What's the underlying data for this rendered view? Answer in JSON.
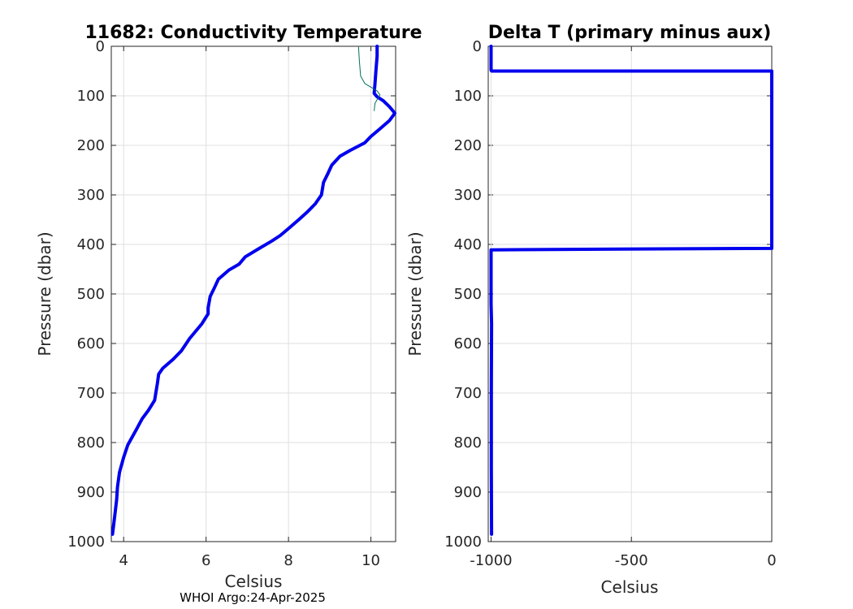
{
  "credit": "WHOI Argo:24-Apr-2025",
  "chart_data": [
    {
      "type": "line",
      "title": "11682: Conductivity Temperature",
      "xlabel": "Celsius",
      "ylabel": "Pressure (dbar)",
      "xlim": [
        3.7,
        10.6
      ],
      "ylim": [
        0,
        1000
      ],
      "y_reversed": true,
      "xticks": [
        4,
        6,
        8,
        10
      ],
      "yticks": [
        0,
        100,
        200,
        300,
        400,
        500,
        600,
        700,
        800,
        900,
        1000
      ],
      "grid": true,
      "series": [
        {
          "color": "#0000ee",
          "points": [
            [
              10.15,
              0
            ],
            [
              10.15,
              20
            ],
            [
              10.12,
              50
            ],
            [
              10.1,
              75
            ],
            [
              10.08,
              95
            ],
            [
              10.15,
              102
            ],
            [
              10.3,
              110
            ],
            [
              10.45,
              122
            ],
            [
              10.58,
              135
            ],
            [
              10.45,
              150
            ],
            [
              10.2,
              168
            ],
            [
              10.0,
              182
            ],
            [
              9.85,
              195
            ],
            [
              9.5,
              210
            ],
            [
              9.25,
              222
            ],
            [
              9.05,
              240
            ],
            [
              8.95,
              258
            ],
            [
              8.85,
              275
            ],
            [
              8.8,
              300
            ],
            [
              8.65,
              318
            ],
            [
              8.45,
              335
            ],
            [
              8.25,
              350
            ],
            [
              8.0,
              368
            ],
            [
              7.8,
              382
            ],
            [
              7.6,
              393
            ],
            [
              7.25,
              410
            ],
            [
              6.95,
              425
            ],
            [
              6.8,
              440
            ],
            [
              6.55,
              452
            ],
            [
              6.3,
              470
            ],
            [
              6.2,
              488
            ],
            [
              6.1,
              505
            ],
            [
              6.05,
              528
            ],
            [
              6.05,
              540
            ],
            [
              5.9,
              560
            ],
            [
              5.6,
              590
            ],
            [
              5.4,
              615
            ],
            [
              5.2,
              632
            ],
            [
              4.95,
              650
            ],
            [
              4.85,
              662
            ],
            [
              4.82,
              680
            ],
            [
              4.78,
              700
            ],
            [
              4.75,
              715
            ],
            [
              4.6,
              735
            ],
            [
              4.45,
              752
            ],
            [
              4.3,
              775
            ],
            [
              4.1,
              805
            ],
            [
              4.0,
              830
            ],
            [
              3.9,
              860
            ],
            [
              3.85,
              890
            ],
            [
              3.83,
              915
            ],
            [
              3.78,
              950
            ],
            [
              3.73,
              985
            ]
          ]
        },
        {
          "color": "#007060",
          "points": [
            [
              9.7,
              0
            ],
            [
              9.72,
              30
            ],
            [
              9.75,
              60
            ],
            [
              9.85,
              75
            ],
            [
              10.05,
              85
            ],
            [
              10.15,
              90
            ],
            [
              10.22,
              98
            ],
            [
              10.1,
              115
            ],
            [
              10.08,
              130
            ]
          ]
        }
      ]
    },
    {
      "type": "line",
      "title": "Delta T (primary minus aux)",
      "xlabel": "Celsius",
      "ylabel": "Pressure (dbar)",
      "xlim": [
        -1010,
        0
      ],
      "ylim": [
        0,
        1000
      ],
      "y_reversed": true,
      "xticks": [
        -1000,
        -500,
        0
      ],
      "yticks": [
        0,
        100,
        200,
        300,
        400,
        500,
        600,
        700,
        800,
        900,
        1000
      ],
      "grid": true,
      "series": [
        {
          "color": "#0000ee",
          "points": [
            [
              -1000,
              0
            ],
            [
              -1000,
              48
            ],
            [
              -998,
              50
            ],
            [
              0,
              50
            ],
            [
              0,
              200
            ],
            [
              0,
              408
            ],
            [
              -400,
              409
            ],
            [
              -1000,
              411
            ],
            [
              -1000,
              520
            ],
            [
              -998,
              560
            ],
            [
              -999,
              700
            ],
            [
              -999,
              850
            ],
            [
              -998,
              985
            ]
          ]
        }
      ]
    }
  ]
}
